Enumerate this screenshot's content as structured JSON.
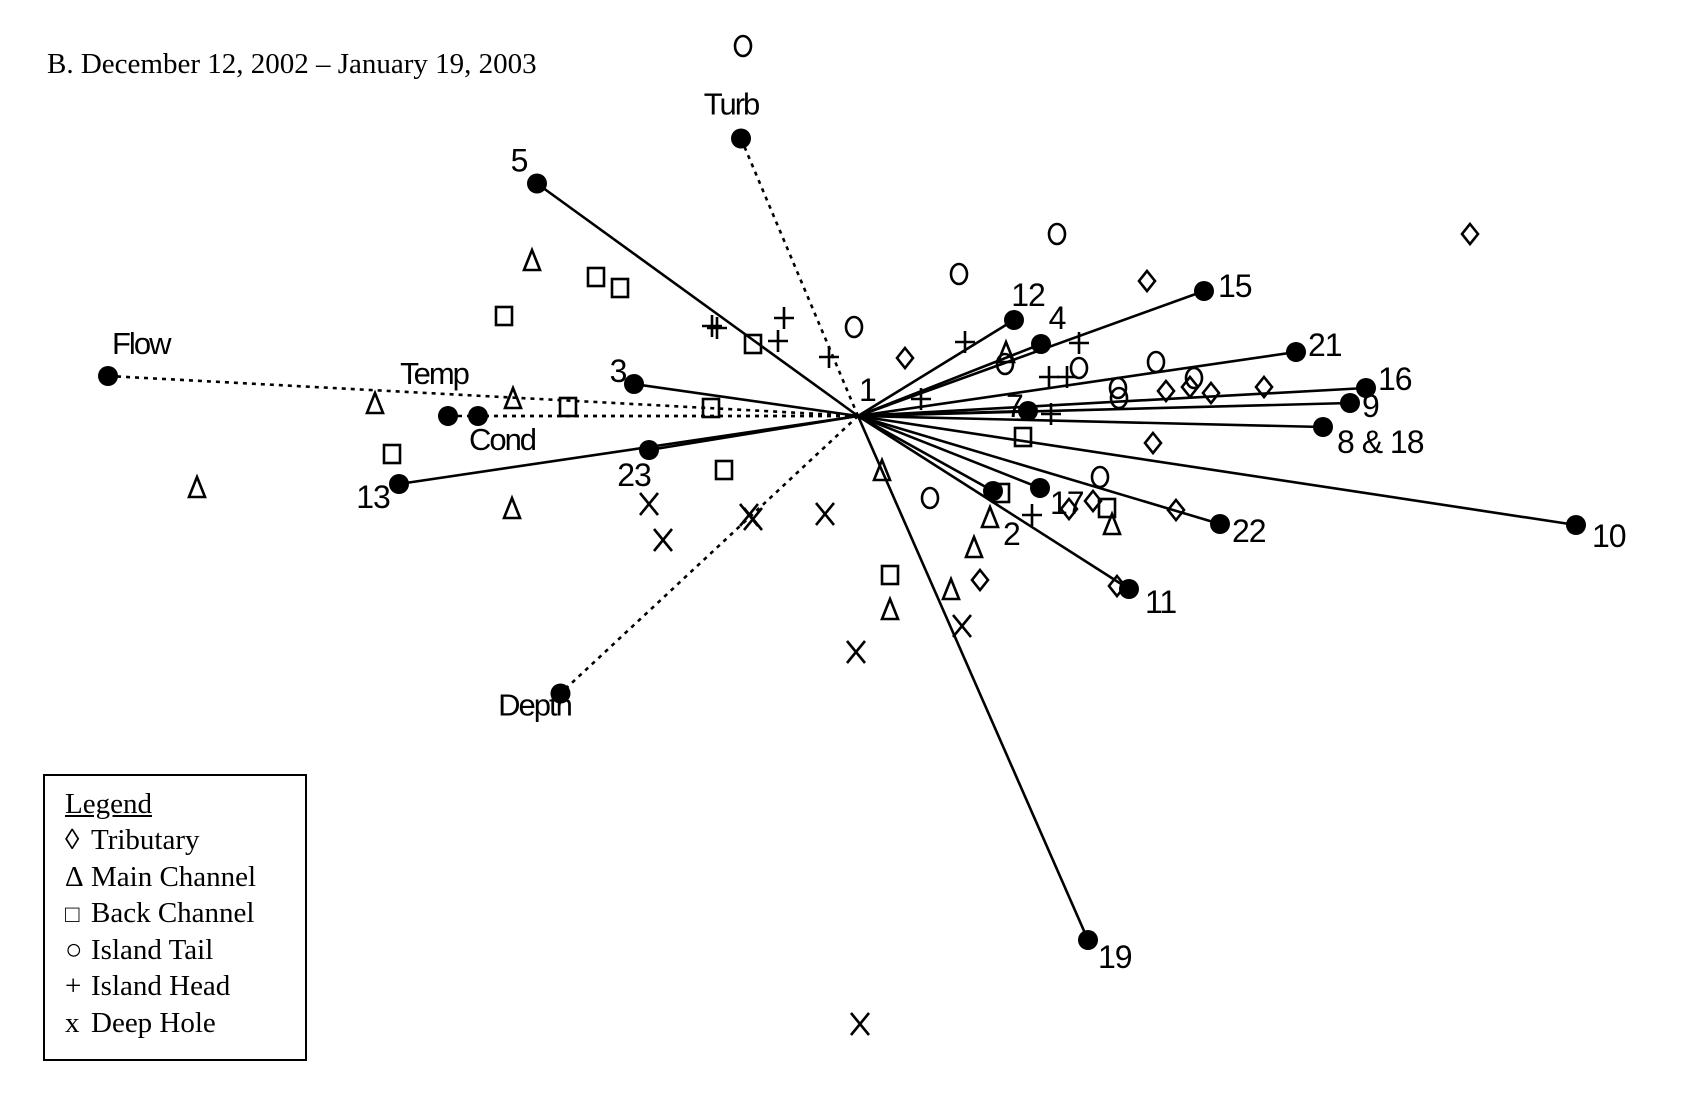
{
  "caption": "B. December 12, 2002 – January 19, 2003",
  "legend": {
    "title": "Legend",
    "items": [
      {
        "symbol": "◊",
        "label": "Tributary",
        "shape": "diamond"
      },
      {
        "symbol": "Δ",
        "label": "Main Channel",
        "shape": "triangle"
      },
      {
        "symbol": "□",
        "label": "Back Channel",
        "shape": "square"
      },
      {
        "symbol": "○",
        "label": "Island Tail",
        "shape": "circle"
      },
      {
        "symbol": "+",
        "label": "Island Head",
        "shape": "plus"
      },
      {
        "symbol": "x",
        "label": "Deep Hole",
        "shape": "x"
      }
    ]
  },
  "chart_data": {
    "type": "scatter",
    "subtype": "ordination biplot",
    "title": "",
    "xlabel": "",
    "ylabel": "",
    "axes_visible": false,
    "grid": false,
    "legend_placement": "bottom-left",
    "x_range": [
      -1.56,
      1.48
    ],
    "y_range": [
      -1.23,
      0.7
    ],
    "origin": [
      0,
      0
    ],
    "environmental_vectors": [
      {
        "label": "Turb",
        "x": -0.234,
        "y": 0.555
      },
      {
        "label": "Flow",
        "x": -1.5,
        "y": 0.08
      },
      {
        "label": "Temp",
        "x": -0.82,
        "y": 0.0
      },
      {
        "label": "Cond",
        "x": -0.76,
        "y": 0.0
      },
      {
        "label": "Depth",
        "x": -0.595,
        "y": -0.555
      }
    ],
    "taxon_vectors": [
      {
        "label": "5",
        "x": -0.642,
        "y": 0.465
      },
      {
        "label": "3",
        "x": -0.448,
        "y": 0.064
      },
      {
        "label": "23",
        "x": -0.418,
        "y": -0.068
      },
      {
        "label": "13",
        "x": -0.918,
        "y": -0.136
      },
      {
        "label": "12",
        "x": 0.312,
        "y": 0.192
      },
      {
        "label": "4",
        "x": 0.366,
        "y": 0.144
      },
      {
        "label": "15",
        "x": 0.692,
        "y": 0.25
      },
      {
        "label": "21",
        "x": 0.876,
        "y": 0.128
      },
      {
        "label": "16",
        "x": 1.016,
        "y": 0.056
      },
      {
        "label": "9",
        "x": 0.984,
        "y": 0.026
      },
      {
        "label": "7",
        "x": 0.34,
        "y": 0.01
      },
      {
        "label": "8 & 18",
        "x": 0.93,
        "y": -0.022
      },
      {
        "label": "10",
        "x": 1.436,
        "y": -0.218
      },
      {
        "label": "22",
        "x": 0.724,
        "y": -0.216
      },
      {
        "label": "17",
        "x": 0.364,
        "y": -0.144
      },
      {
        "label": "2",
        "x": 0.27,
        "y": -0.15
      },
      {
        "label": "11",
        "x": 0.542,
        "y": -0.346
      },
      {
        "label": "19",
        "x": 0.46,
        "y": -1.048
      }
    ],
    "origin_label": "1",
    "site_points": {
      "Tributary": [
        [
          0.094,
          0.116
        ],
        [
          0.578,
          0.27
        ],
        [
          1.224,
          0.364
        ],
        [
          0.59,
          -0.054
        ],
        [
          0.616,
          0.05
        ],
        [
          0.664,
          0.058
        ],
        [
          0.706,
          0.046
        ],
        [
          0.812,
          0.058
        ],
        [
          0.422,
          -0.186
        ],
        [
          0.47,
          -0.17
        ],
        [
          0.636,
          -0.188
        ],
        [
          0.244,
          -0.328
        ],
        [
          0.518,
          -0.34
        ]
      ],
      "Main Channel": [
        [
          -0.652,
          0.31
        ],
        [
          -0.69,
          0.034
        ],
        [
          -0.966,
          0.024
        ],
        [
          -1.322,
          -0.144
        ],
        [
          -0.692,
          -0.186
        ],
        [
          0.048,
          -0.11
        ],
        [
          0.296,
          0.126
        ],
        [
          0.264,
          -0.204
        ],
        [
          0.232,
          -0.264
        ],
        [
          0.186,
          -0.348
        ],
        [
          0.064,
          -0.388
        ],
        [
          0.508,
          -0.218
        ]
      ],
      "Back Channel": [
        [
          -0.524,
          0.278
        ],
        [
          -0.476,
          0.256
        ],
        [
          -0.708,
          0.2
        ],
        [
          -0.21,
          0.144
        ],
        [
          -0.58,
          0.018
        ],
        [
          -0.294,
          0.016
        ],
        [
          -0.932,
          -0.076
        ],
        [
          -0.268,
          -0.108
        ],
        [
          0.064,
          -0.318
        ],
        [
          0.286,
          -0.154
        ],
        [
          0.33,
          -0.042
        ],
        [
          0.498,
          -0.184
        ]
      ],
      "Island Tail": [
        [
          -0.23,
          0.74
        ],
        [
          0.398,
          0.364
        ],
        [
          0.202,
          0.284
        ],
        [
          -0.008,
          0.178
        ],
        [
          0.294,
          0.104
        ],
        [
          0.442,
          0.096
        ],
        [
          0.596,
          0.108
        ],
        [
          0.672,
          0.076
        ],
        [
          0.52,
          0.056
        ],
        [
          0.522,
          0.036
        ],
        [
          0.484,
          -0.122
        ],
        [
          0.144,
          -0.164
        ]
      ],
      "Island Head": [
        [
          -0.292,
          0.18
        ],
        [
          -0.282,
          0.176
        ],
        [
          -0.148,
          0.196
        ],
        [
          -0.16,
          0.15
        ],
        [
          -0.058,
          0.118
        ],
        [
          0.214,
          0.148
        ],
        [
          0.442,
          0.146
        ],
        [
          0.382,
          0.078
        ],
        [
          0.418,
          0.078
        ],
        [
          0.126,
          0.034
        ],
        [
          0.386,
          0.004
        ],
        [
          0.348,
          -0.198
        ]
      ],
      "Deep Hole": [
        [
          -0.418,
          -0.176
        ],
        [
          -0.39,
          -0.248
        ],
        [
          -0.218,
          -0.198
        ],
        [
          -0.21,
          -0.206
        ],
        [
          -0.066,
          -0.196
        ],
        [
          -0.004,
          -0.472
        ],
        [
          0.208,
          -0.42
        ],
        [
          0.004,
          -1.216
        ]
      ]
    }
  }
}
